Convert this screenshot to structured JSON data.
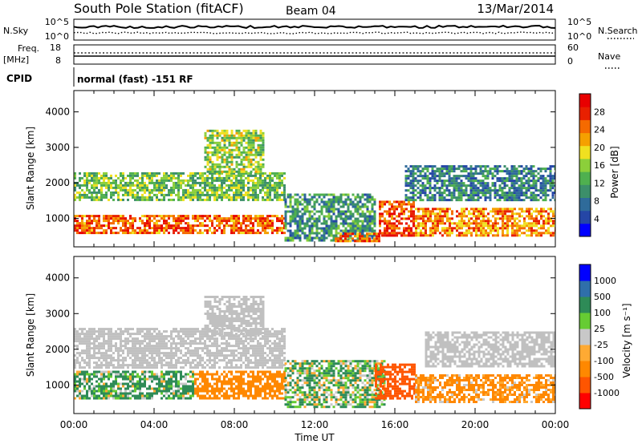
{
  "header": {
    "title": "South Pole Station (fitACF)",
    "beam": "Beam 04",
    "date": "13/Mar/2014"
  },
  "top_panels": {
    "nsky_label": "N.Sky",
    "nsky_ticks": [
      "10^5",
      "10^0"
    ],
    "nsearch_label": "N.Search",
    "nsearch_ticks": [
      "10^5",
      "10^0"
    ],
    "freq_label": "Freq.",
    "freq_unit": "[MHz]",
    "freq_ticks": [
      "18",
      "8"
    ],
    "nave_label": "Nave",
    "nave_ticks": [
      "60",
      "0"
    ],
    "cpid_label": "CPID",
    "cpid_text": "normal (fast) -151 RF"
  },
  "colors": {
    "power_scale": [
      "#0000ff",
      "#2546a6",
      "#2f6b9a",
      "#3c8f6a",
      "#4fb04f",
      "#8ccf3a",
      "#f0e020",
      "#f5a000",
      "#f56a00",
      "#e82000",
      "#e80000"
    ],
    "velocity_scale": [
      "#ff0000",
      "#ff5500",
      "#ff8800",
      "#ffaa33",
      "#c8c8c8",
      "#66cc33",
      "#2e8b57",
      "#2f6faa",
      "#0000ff"
    ],
    "ground_scatter": "#c0c0c0"
  },
  "chart_data": [
    {
      "type": "heatmap",
      "name": "power",
      "xlabel": "",
      "ylabel": "Slant Range [km]",
      "y_ticks": [
        1000,
        2000,
        3000,
        4000
      ],
      "ylim": [
        200,
        4600
      ],
      "xlim_hours": [
        0,
        24
      ],
      "colorbar_label": "Power [dB]",
      "colorbar_ticks": [
        "4",
        "8",
        "12",
        "16",
        "20",
        "24",
        "28"
      ],
      "zlim": [
        0,
        32
      ],
      "regions": [
        {
          "t0": 0.0,
          "t1": 10.5,
          "r0": 600,
          "r1": 1100,
          "value": 26
        },
        {
          "t0": 0.0,
          "t1": 10.5,
          "r0": 1500,
          "r1": 2300,
          "value": 14
        },
        {
          "t0": 6.5,
          "t1": 9.5,
          "r0": 2300,
          "r1": 3500,
          "value": 16
        },
        {
          "t0": 10.5,
          "t1": 15.0,
          "r0": 400,
          "r1": 1700,
          "value": 10
        },
        {
          "t0": 13.0,
          "t1": 15.2,
          "r0": 350,
          "r1": 600,
          "value": 26
        },
        {
          "t0": 15.2,
          "t1": 17.0,
          "r0": 500,
          "r1": 1500,
          "value": 28
        },
        {
          "t0": 17.0,
          "t1": 24.0,
          "r0": 500,
          "r1": 1300,
          "value": 24
        },
        {
          "t0": 16.5,
          "t1": 24.0,
          "r0": 1500,
          "r1": 2500,
          "value": 8
        }
      ]
    },
    {
      "type": "heatmap",
      "name": "velocity",
      "xlabel": "Time UT",
      "ylabel": "Slant Range [km]",
      "x_ticks": [
        "00:00",
        "04:00",
        "08:00",
        "12:00",
        "16:00",
        "20:00",
        "00:00"
      ],
      "y_ticks": [
        1000,
        2000,
        3000,
        4000
      ],
      "ylim": [
        200,
        4600
      ],
      "xlim_hours": [
        0,
        24
      ],
      "colorbar_label": "Velocity [m s⁻¹]",
      "colorbar_ticks": [
        "-1000",
        "-500",
        "-100",
        "-25",
        "25",
        "100",
        "500",
        "1000"
      ],
      "regions": [
        {
          "t0": 0.0,
          "t1": 6.0,
          "r0": 600,
          "r1": 1400,
          "value": 150
        },
        {
          "t0": 0.0,
          "t1": 10.5,
          "r0": 1500,
          "r1": 2600,
          "value": 0,
          "ground_scatter": true
        },
        {
          "t0": 6.5,
          "t1": 9.5,
          "r0": 2400,
          "r1": 3500,
          "value": 0,
          "ground_scatter": true
        },
        {
          "t0": 6.0,
          "t1": 10.5,
          "r0": 600,
          "r1": 1400,
          "value": -300
        },
        {
          "t0": 10.5,
          "t1": 15.5,
          "r0": 400,
          "r1": 1700,
          "value": 100
        },
        {
          "t0": 15.0,
          "t1": 17.0,
          "r0": 600,
          "r1": 1600,
          "value": -800
        },
        {
          "t0": 17.0,
          "t1": 24.0,
          "r0": 500,
          "r1": 1300,
          "value": -200
        },
        {
          "t0": 17.5,
          "t1": 24.0,
          "r0": 1500,
          "r1": 2500,
          "value": 0,
          "ground_scatter": true
        }
      ]
    }
  ]
}
